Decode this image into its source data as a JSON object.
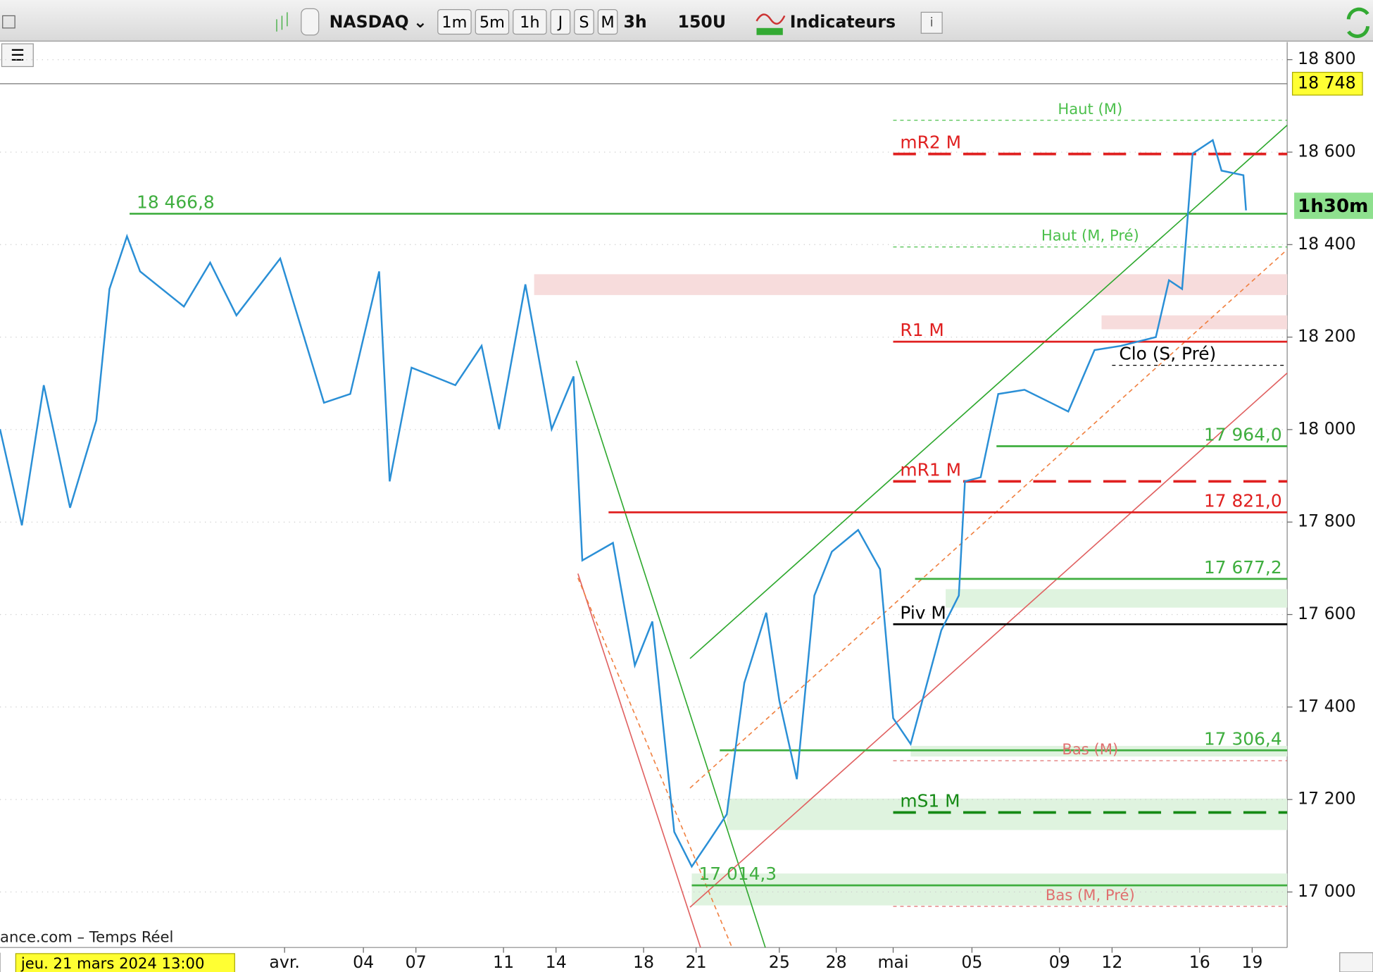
{
  "toolbar": {
    "symbol": "NASDAQ",
    "periods": [
      "1m",
      "5m",
      "1h",
      "J",
      "S",
      "M"
    ],
    "interval": "3h",
    "units": "150U",
    "indicators": "Indicateurs"
  },
  "source": "ance.com – Temps Réel",
  "chart_data": {
    "type": "line",
    "cursor_label": "jeu. 21 mars 2024 13:00",
    "countdown": "1h30m",
    "last": {
      "value": 18748,
      "label": "18 748"
    },
    "xlim": [
      0,
      294
    ],
    "xticks": [
      {
        "value": 65,
        "label": "avr."
      },
      {
        "value": 83,
        "label": "04"
      },
      {
        "value": 95,
        "label": "07"
      },
      {
        "value": 115,
        "label": "11"
      },
      {
        "value": 127,
        "label": "14"
      },
      {
        "value": 147,
        "label": "18"
      },
      {
        "value": 159,
        "label": "21"
      },
      {
        "value": 178,
        "label": "25"
      },
      {
        "value": 191,
        "label": "28"
      },
      {
        "value": 204,
        "label": "mai"
      },
      {
        "value": 222,
        "label": "05"
      },
      {
        "value": 242,
        "label": "09"
      },
      {
        "value": 254,
        "label": "12"
      },
      {
        "value": 274,
        "label": "16"
      },
      {
        "value": 286,
        "label": "19"
      }
    ],
    "ylim": [
      16880,
      18840
    ],
    "yticks": [
      {
        "value": 17000,
        "label": "17 000"
      },
      {
        "value": 17200,
        "label": "17 200"
      },
      {
        "value": 17400,
        "label": "17 400"
      },
      {
        "value": 17600,
        "label": "17 600"
      },
      {
        "value": 17800,
        "label": "17 800"
      },
      {
        "value": 18000,
        "label": "18 000"
      },
      {
        "value": 18200,
        "label": "18 200"
      },
      {
        "value": 18400,
        "label": "18 400"
      },
      {
        "value": 18600,
        "label": "18 600"
      },
      {
        "value": 18800,
        "label": "18 800"
      }
    ],
    "grid": true,
    "series": [
      {
        "color": "#2a8fd6",
        "x": [
          0,
          5,
          10,
          16,
          22,
          25,
          29,
          32,
          42,
          48,
          54,
          64,
          74,
          80,
          86.6,
          89,
          94,
          104,
          110,
          114,
          120,
          126,
          131,
          133,
          140,
          145,
          149,
          154,
          158,
          162,
          166,
          170,
          175,
          178,
          182,
          186,
          190,
          196,
          201,
          204,
          208,
          215,
          219,
          220.4,
          224,
          228,
          234,
          240,
          244,
          250,
          256,
          264,
          267,
          270,
          272.4,
          277,
          279,
          284,
          284.6
        ],
        "values": [
          18001,
          17793,
          18096,
          17831,
          18020,
          18304,
          18418,
          18342,
          18266,
          18361,
          18247,
          18370,
          18058,
          18077,
          18342,
          17888,
          18134,
          18096,
          18181,
          18001,
          18314,
          18001,
          18115,
          17717,
          17755,
          17490,
          17585,
          17130,
          17055,
          17111,
          17168,
          17452,
          17604,
          17414,
          17244,
          17641,
          17736,
          17783,
          17698,
          17376,
          17320,
          17566,
          17641,
          17888,
          17897,
          18077,
          18086,
          18058,
          18039,
          18172,
          18181,
          18200,
          18323,
          18304,
          18597,
          18626,
          18560,
          18550,
          18474
        ]
      }
    ],
    "zones": [
      {
        "x0": 122,
        "range": [
          18291,
          18336
        ],
        "color": "#f7dcdc"
      },
      {
        "x0": 251.6,
        "range": [
          18217,
          18247
        ],
        "color": "#f7dcdc"
      },
      {
        "x0": 216,
        "range": [
          17615,
          17655
        ],
        "color": "#dff3df"
      },
      {
        "x0": 166,
        "range": [
          17134,
          17202
        ],
        "color": "#dff3df"
      },
      {
        "x0": 158,
        "range": [
          16971,
          17040
        ],
        "color": "#dff3df"
      },
      {
        "x0": 208,
        "range": [
          17293,
          17316
        ],
        "color": "#dff3df"
      }
    ],
    "levels": [
      {
        "label": "18 466,8",
        "value": 18466.8,
        "x0": 29.6,
        "color": "#3fae3f",
        "dash": false,
        "pos": "left"
      },
      {
        "label": "Haut (M)",
        "value": 18669,
        "x0": 204,
        "color": "#4cc04c",
        "dash": true,
        "pos": "center"
      },
      {
        "label": "mR2 M",
        "value": 18596,
        "x0": 204,
        "color": "#e02020",
        "dash": true,
        "pos": "left"
      },
      {
        "label": "Haut (M, Pré)",
        "value": 18395,
        "x0": 204,
        "color": "#4cc04c",
        "dash": true,
        "pos": "center"
      },
      {
        "label": "R1 M",
        "value": 18190,
        "x0": 204,
        "color": "#e02020",
        "dash": false,
        "pos": "left"
      },
      {
        "label": "Clo (S, Pré)",
        "value": 18139,
        "x0": 254,
        "color": "#000000",
        "dash": true,
        "pos": "left"
      },
      {
        "label": "17 964,0",
        "value": 17964.0,
        "x0": 227.6,
        "color": "#3fae3f",
        "dash": false,
        "pos": "right"
      },
      {
        "label": "mR1 M",
        "value": 17888,
        "x0": 204,
        "color": "#e02020",
        "dash": true,
        "pos": "left"
      },
      {
        "label": "17 821,0",
        "value": 17821.0,
        "x0": 139,
        "color": "#e02020",
        "dash": false,
        "pos": "right"
      },
      {
        "label": "17 677,2",
        "value": 17677.2,
        "x0": 209,
        "color": "#3fae3f",
        "dash": false,
        "pos": "right"
      },
      {
        "label": "Piv M",
        "value": 17579,
        "x0": 204,
        "color": "#000000",
        "dash": false,
        "pos": "left"
      },
      {
        "label": "17 306,4",
        "value": 17306.4,
        "x0": 164.4,
        "color": "#3fae3f",
        "dash": false,
        "pos": "right"
      },
      {
        "label": "Bas (M)",
        "value": 17284,
        "x0": 204,
        "color": "#e07070",
        "dash": true,
        "pos": "center"
      },
      {
        "label": "mS1 M",
        "value": 17172,
        "x0": 204,
        "color": "#158a15",
        "dash": true,
        "pos": "left"
      },
      {
        "label": "17 014,3",
        "value": 17014.3,
        "x0": 158,
        "color": "#3fae3f",
        "dash": false,
        "pos": "left"
      },
      {
        "label": "Bas (M, Pré)",
        "value": 16969,
        "x0": 204,
        "color": "#e07070",
        "dash": true,
        "pos": "center"
      }
    ]
  }
}
